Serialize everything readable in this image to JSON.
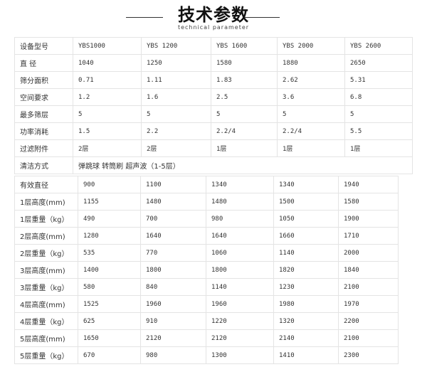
{
  "header": {
    "title": "技术参数",
    "subtitle": "technical parameter"
  },
  "table1": [
    [
      "设备型号",
      "YBS1000",
      "YBS 1200",
      "YBS 1600",
      "YBS 2000",
      "YBS 2600"
    ],
    [
      "直 径",
      "1040",
      "1250",
      "1580",
      "1880",
      "2650"
    ],
    [
      "筛分面积",
      "0.71",
      "1.11",
      "1.83",
      "2.62",
      "5.31"
    ],
    [
      "空间要求",
      "1.2",
      "1.6",
      "2.5",
      "3.6",
      "6.8"
    ],
    [
      "最多筛层",
      "5",
      "5",
      "5",
      "5",
      "5"
    ],
    [
      "功率消耗",
      "1.5",
      "2.2",
      "2.2/4",
      "2.2/4",
      "5.5"
    ],
    [
      "过滤附件",
      "2层",
      "2层",
      "1层",
      "1层",
      "1层"
    ]
  ],
  "cleaning": {
    "label": "清洁方式",
    "value": "弹跳球 转筒刷 超声波（1-5层）"
  },
  "table2": [
    [
      "有效直径",
      "900",
      "1100",
      "1340",
      "1340",
      "1940"
    ],
    [
      "1层高度(mm)",
      "1155",
      "1480",
      "1480",
      "1500",
      "1580"
    ],
    [
      "1层重量（kg）",
      "490",
      "700",
      "980",
      "1050",
      "1900"
    ],
    [
      "2层高度(mm)",
      "1280",
      "1640",
      "1640",
      "1660",
      "1710"
    ],
    [
      "2层重量（kg）",
      "535",
      "770",
      "1060",
      "1140",
      "2000"
    ],
    [
      "3层高度(mm)",
      "1400",
      "1800",
      "1800",
      "1820",
      "1840"
    ],
    [
      "3层重量（kg）",
      "580",
      "840",
      "1140",
      "1230",
      "2100"
    ],
    [
      "4层高度(mm)",
      "1525",
      "1960",
      "1960",
      "1980",
      "1970"
    ],
    [
      "4层重量（kg）",
      "625",
      "910",
      "1220",
      "1320",
      "2200"
    ],
    [
      "5层高度(mm)",
      "1650",
      "2120",
      "2120",
      "2140",
      "2100"
    ],
    [
      "5层重量（kg）",
      "670",
      "980",
      "1300",
      "1410",
      "2300"
    ]
  ]
}
